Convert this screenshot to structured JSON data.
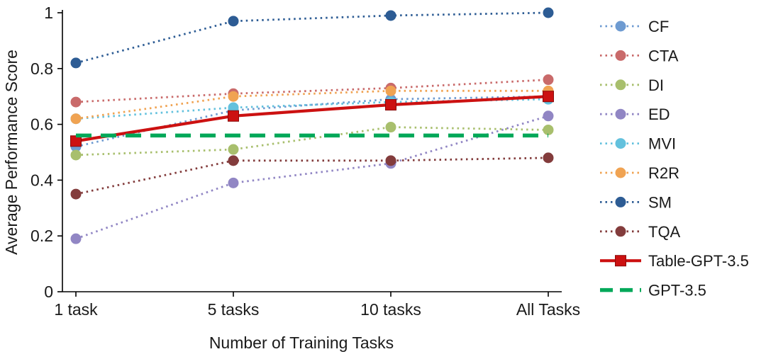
{
  "chart_data": {
    "type": "line",
    "title": "",
    "categories": [
      "1 task",
      "5 tasks",
      "10 tasks",
      "All Tasks"
    ],
    "xlabel": "Number of Training Tasks",
    "ylabel": "Average Performance Score",
    "ylim": [
      0,
      1
    ],
    "yticks": [
      0,
      0.2,
      0.4,
      0.6,
      0.8,
      1
    ],
    "ytick_labels": [
      "0",
      "0.2",
      "0.4",
      "0.6",
      "0.8",
      "1"
    ],
    "grid": false,
    "legend_position": "right",
    "axis_color": "#000000",
    "text_color": "#1a1a1a",
    "series": [
      {
        "name": "CF",
        "color": "#6e9bd1",
        "style": "dotted",
        "marker": "circle",
        "values": [
          0.52,
          0.65,
          0.69,
          0.7
        ]
      },
      {
        "name": "CTA",
        "color": "#c96a6a",
        "style": "dotted",
        "marker": "circle",
        "values": [
          0.68,
          0.71,
          0.73,
          0.76
        ]
      },
      {
        "name": "DI",
        "color": "#a8bf6d",
        "style": "dotted",
        "marker": "circle",
        "values": [
          0.49,
          0.51,
          0.59,
          0.58
        ]
      },
      {
        "name": "ED",
        "color": "#9186c4",
        "style": "dotted",
        "marker": "circle",
        "values": [
          0.19,
          0.39,
          0.46,
          0.63
        ]
      },
      {
        "name": "MVI",
        "color": "#63c1dd",
        "style": "dotted",
        "marker": "circle",
        "values": [
          0.62,
          0.66,
          0.68,
          0.69
        ]
      },
      {
        "name": "R2R",
        "color": "#f0a352",
        "style": "dotted",
        "marker": "circle",
        "values": [
          0.62,
          0.7,
          0.72,
          0.72
        ]
      },
      {
        "name": "SM",
        "color": "#2d5c94",
        "style": "dotted",
        "marker": "circle",
        "values": [
          0.82,
          0.97,
          0.99,
          1.0
        ]
      },
      {
        "name": "TQA",
        "color": "#833c3c",
        "style": "dotted",
        "marker": "circle",
        "values": [
          0.35,
          0.47,
          0.47,
          0.48
        ]
      },
      {
        "name": "Table-GPT-3.5",
        "color": "#cc1111",
        "style": "solid",
        "marker": "square",
        "values": [
          0.54,
          0.63,
          0.67,
          0.7
        ]
      },
      {
        "name": "GPT-3.5",
        "color": "#00a859",
        "style": "dashed",
        "marker": "none",
        "values": [
          0.56,
          0.56,
          0.56,
          0.56
        ]
      }
    ]
  }
}
